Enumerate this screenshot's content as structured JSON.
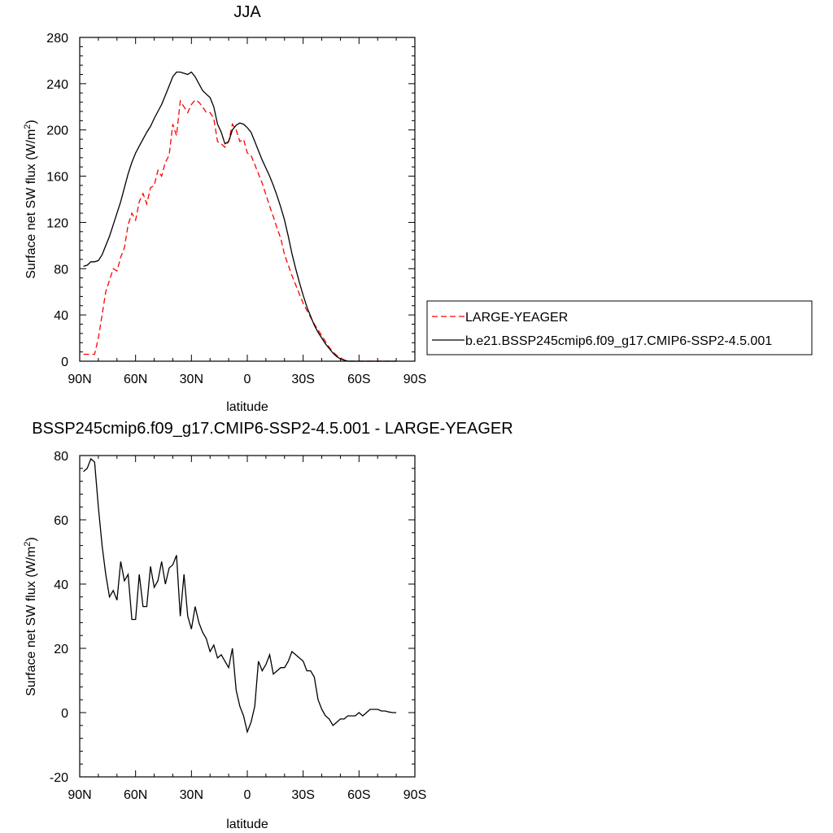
{
  "chart_data": [
    {
      "type": "line",
      "title": "JJA",
      "xlabel": "latitude",
      "ylabel": "Surface net SW flux (W/m",
      "ylabel_sup": "2",
      "ylabel_close": ")",
      "xlim": [
        90,
        -90
      ],
      "ylim": [
        0,
        280
      ],
      "xticks": [
        90,
        60,
        30,
        0,
        -30,
        -60,
        -90
      ],
      "xticklabels": [
        "90N",
        "60N",
        "30N",
        "0",
        "30S",
        "60S",
        "90S"
      ],
      "yticks": [
        0,
        40,
        80,
        120,
        160,
        200,
        240,
        280
      ],
      "yticklabels": [
        "0",
        "40",
        "80",
        "120",
        "160",
        "200",
        "240",
        "280"
      ],
      "legend_position": "right",
      "series": [
        {
          "name": "LARGE-YEAGER",
          "color": "#ff0000",
          "style": "dashed",
          "x": [
            88,
            86,
            84,
            82,
            80,
            78,
            76,
            74,
            72,
            70,
            68,
            66,
            64,
            62,
            60,
            58,
            56,
            54,
            52,
            50,
            48,
            46,
            44,
            42,
            40,
            38,
            36,
            34,
            32,
            30,
            28,
            26,
            24,
            22,
            20,
            18,
            16,
            14,
            12,
            10,
            8,
            6,
            4,
            2,
            0,
            -2,
            -4,
            -6,
            -8,
            -10,
            -12,
            -14,
            -16,
            -18,
            -20,
            -22,
            -24,
            -26,
            -28,
            -30,
            -32,
            -34,
            -36,
            -38,
            -40,
            -42,
            -44,
            -46,
            -48,
            -50,
            -52,
            -54,
            -56,
            -58,
            -60,
            -62,
            -64,
            -66,
            -68,
            -70,
            -72,
            -74,
            -76,
            -78,
            -80
          ],
          "values": [
            6,
            6,
            6,
            6,
            20,
            40,
            60,
            70,
            80,
            78,
            90,
            98,
            118,
            128,
            122,
            138,
            145,
            136,
            150,
            152,
            165,
            160,
            172,
            178,
            205,
            195,
            225,
            220,
            215,
            222,
            226,
            224,
            220,
            215,
            215,
            210,
            190,
            188,
            185,
            190,
            205,
            200,
            190,
            192,
            180,
            178,
            170,
            162,
            154,
            144,
            134,
            125,
            115,
            106,
            92,
            83,
            74,
            66,
            58,
            50,
            44,
            38,
            32,
            27,
            22,
            17,
            12,
            8,
            5,
            3,
            1,
            0,
            0,
            0,
            0,
            0,
            0,
            0,
            0,
            0,
            0,
            0,
            0,
            0,
            0
          ]
        },
        {
          "name": "b.e21.BSSP245cmip6.f09_g17.CMIP6-SSP2-4.5.001",
          "color": "#000000",
          "style": "solid",
          "x": [
            88,
            86,
            84,
            82,
            80,
            78,
            76,
            74,
            72,
            70,
            68,
            66,
            64,
            62,
            60,
            58,
            56,
            54,
            52,
            50,
            48,
            46,
            44,
            42,
            40,
            38,
            36,
            34,
            32,
            30,
            28,
            26,
            24,
            22,
            20,
            18,
            16,
            14,
            12,
            10,
            8,
            6,
            4,
            2,
            0,
            -2,
            -4,
            -6,
            -8,
            -10,
            -12,
            -14,
            -16,
            -18,
            -20,
            -22,
            -24,
            -26,
            -28,
            -30,
            -32,
            -34,
            -36,
            -38,
            -40,
            -42,
            -44,
            -46,
            -48,
            -50,
            -52,
            -54,
            -56,
            -58,
            -60,
            -62,
            -64,
            -66,
            -68,
            -70,
            -72,
            -74,
            -76,
            -78,
            -80
          ],
          "values": [
            82,
            83,
            86,
            86,
            87,
            92,
            100,
            108,
            118,
            128,
            138,
            150,
            162,
            172,
            180,
            186,
            192,
            198,
            203,
            210,
            216,
            222,
            230,
            238,
            246,
            250,
            250,
            249,
            248,
            250,
            246,
            240,
            234,
            231,
            228,
            220,
            205,
            198,
            188,
            190,
            200,
            204,
            206,
            205,
            202,
            198,
            190,
            182,
            174,
            167,
            160,
            152,
            143,
            133,
            122,
            108,
            93,
            80,
            68,
            57,
            47,
            39,
            31,
            25,
            20,
            15,
            11,
            7,
            4,
            2,
            1,
            0,
            0,
            0,
            0,
            0,
            0,
            0,
            0,
            0,
            0,
            0,
            0,
            0,
            0
          ]
        }
      ]
    },
    {
      "type": "line",
      "title": "BSSP245cmip6.f09_g17.CMIP6-SSP2-4.5.001 - LARGE-YEAGER",
      "xlabel": "latitude",
      "ylabel": "Surface net SW flux (W/m",
      "ylabel_sup": "2",
      "ylabel_close": ")",
      "xlim": [
        90,
        -90
      ],
      "ylim": [
        -20,
        80
      ],
      "xticks": [
        90,
        60,
        30,
        0,
        -30,
        -60,
        -90
      ],
      "xticklabels": [
        "90N",
        "60N",
        "30N",
        "0",
        "30S",
        "60S",
        "90S"
      ],
      "yticks": [
        -20,
        0,
        20,
        40,
        60,
        80
      ],
      "yticklabels": [
        "-20",
        "0",
        "20",
        "40",
        "60",
        "80"
      ],
      "series": [
        {
          "color": "#000000",
          "style": "solid",
          "x": [
            88,
            86,
            84,
            82,
            80,
            78,
            76,
            74,
            72,
            70,
            68,
            66,
            64,
            62,
            60,
            58,
            56,
            54,
            52,
            50,
            48,
            46,
            44,
            42,
            40,
            38,
            36,
            34,
            32,
            30,
            28,
            26,
            24,
            22,
            20,
            18,
            16,
            14,
            12,
            10,
            8,
            6,
            4,
            2,
            0,
            -2,
            -4,
            -6,
            -8,
            -10,
            -12,
            -14,
            -16,
            -18,
            -20,
            -22,
            -24,
            -26,
            -28,
            -30,
            -32,
            -34,
            -36,
            -38,
            -40,
            -42,
            -44,
            -46,
            -48,
            -50,
            -52,
            -54,
            -56,
            -58,
            -60,
            -62,
            -64,
            -66,
            -68,
            -70,
            -72,
            -74,
            -76,
            -78,
            -80
          ],
          "values": [
            75,
            76,
            79,
            78,
            64,
            52,
            43,
            36,
            38,
            35,
            47,
            41,
            43,
            29,
            29,
            43,
            33,
            33,
            45.5,
            39,
            41,
            47,
            40,
            45,
            46,
            49,
            30,
            43,
            30,
            26,
            33,
            28,
            25,
            23,
            19,
            21,
            17,
            18,
            16,
            14,
            20,
            7,
            2,
            -1,
            -6,
            -3,
            2,
            16,
            13,
            15,
            18,
            12,
            13,
            14,
            14,
            16,
            19,
            18,
            17,
            16,
            13,
            13,
            11,
            4,
            1,
            -1,
            -2,
            -4,
            -3,
            -2,
            -2,
            -1,
            -1,
            -1,
            0,
            -1,
            0,
            1,
            1,
            1,
            0.5,
            0.5,
            0.2,
            0,
            0
          ]
        }
      ]
    }
  ]
}
